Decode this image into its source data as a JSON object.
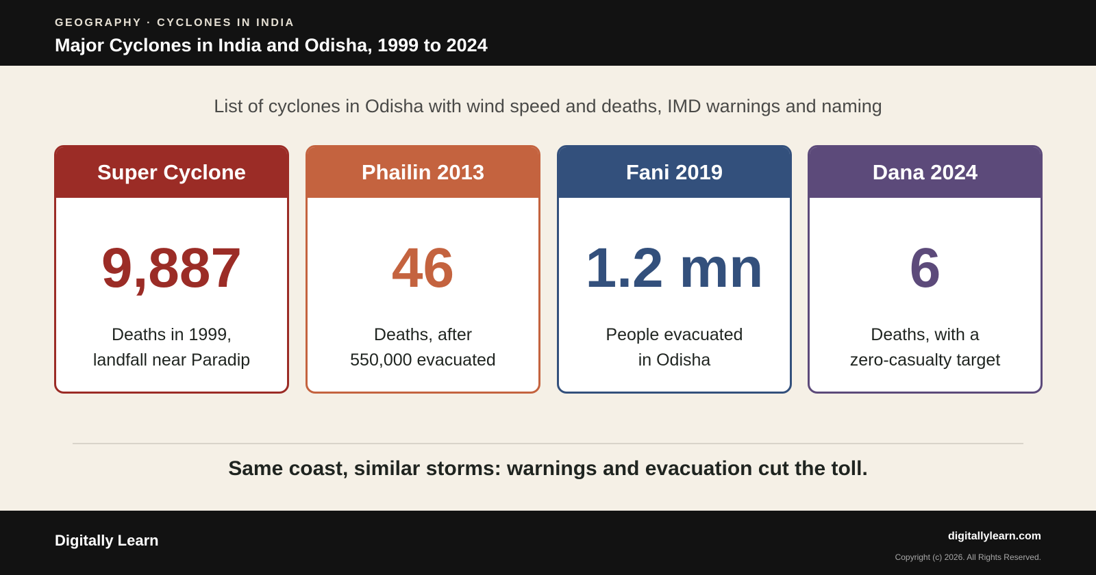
{
  "header": {
    "kicker": "GEOGRAPHY · CYCLONES IN INDIA",
    "title": "Major Cyclones in India and Odisha, 1999 to 2024"
  },
  "subtitle": "List of cyclones in Odisha with wind speed and deaths, IMD warnings and naming",
  "cards": [
    {
      "name": "Super Cyclone",
      "value": "9,887",
      "desc_line1": "Deaths in 1999,",
      "desc_line2": "landfall near Paradip",
      "color": "#9b2c26"
    },
    {
      "name": "Phailin 2013",
      "value": "46",
      "desc_line1": "Deaths, after",
      "desc_line2": "550,000 evacuated",
      "color": "#c4633f"
    },
    {
      "name": "Fani 2019",
      "value": "1.2 mn",
      "desc_line1": "People evacuated",
      "desc_line2": "in Odisha",
      "color": "#33507c"
    },
    {
      "name": "Dana 2024",
      "value": "6",
      "desc_line1": "Deaths, with a",
      "desc_line2": "zero-casualty target",
      "color": "#5c4a7a"
    }
  ],
  "takeaway": "Same coast, similar storms: warnings and evacuation cut the toll.",
  "footer": {
    "brand": "Digitally Learn",
    "site": "digitallylearn.com",
    "copyright": "Copyright (c) 2026. All Rights Reserved."
  }
}
